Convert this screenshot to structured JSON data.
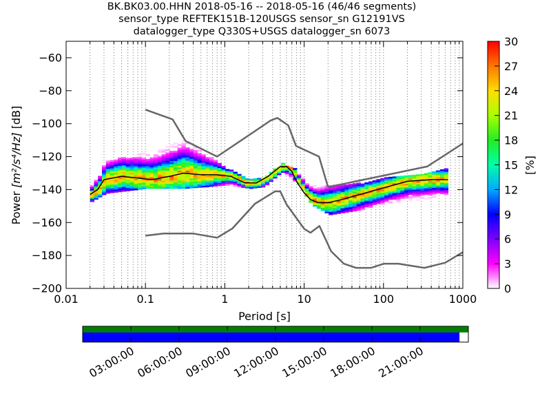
{
  "chart_data": {
    "type": "heatmap",
    "title": [
      "BK.BK03.00.HHN   2018-05-16 -- 2018-05-16  (46/46 segments)",
      "sensor_type REFTEK151B-120USGS sensor_sn G12191VS",
      "datalogger_type Q330S+USGS datalogger_sn 6073"
    ],
    "xlabel": "Period [s]",
    "ylabel_prefix": "Power ",
    "ylabel_unit": "[m²/s⁴/Hz]",
    "ylabel_suffix": " [dB]",
    "x_scale": "log",
    "xlim": [
      0.01,
      1000
    ],
    "ylim": [
      -200,
      -50
    ],
    "xticks": [
      0.01,
      0.1,
      1,
      10,
      100,
      1000
    ],
    "xtick_labels": [
      "0.01",
      "0.1",
      "1",
      "10",
      "100",
      "1000"
    ],
    "yticks": [
      -200,
      -180,
      -160,
      -140,
      -120,
      -100,
      -80,
      -60
    ],
    "ytick_labels": [
      "−200",
      "−180",
      "−160",
      "−140",
      "−120",
      "−100",
      "−80",
      "−60"
    ],
    "grid": "dotted vertical at log minor ticks",
    "colorbar": {
      "label": "[%]",
      "range": [
        0,
        30
      ],
      "ticks": [
        0,
        3,
        6,
        9,
        12,
        15,
        18,
        21,
        24,
        27,
        30
      ],
      "tick_labels": [
        "0",
        "3",
        "6",
        "9",
        "12",
        "15",
        "18",
        "21",
        "24",
        "27",
        "30"
      ],
      "colors": [
        "#ffffff",
        "#ff00ff",
        "#7f00ff",
        "#0000ff",
        "#00aaff",
        "#00ffaa",
        "#22ee22",
        "#aaff00",
        "#ffdd00",
        "#ff7700",
        "#ff0000"
      ]
    },
    "noise_model_high": {
      "period": [
        0.1,
        0.22,
        0.32,
        0.8,
        3.8,
        4.6,
        6.3,
        7.9,
        15.4,
        20,
        354.8,
        1000
      ],
      "power": [
        -91.5,
        -97.4,
        -110.5,
        -120,
        -98,
        -96.5,
        -101,
        -113.5,
        -120,
        -138.5,
        -126,
        -112
      ]
    },
    "noise_model_low": {
      "period": [
        0.1,
        0.17,
        0.4,
        0.8,
        1.24,
        2.4,
        4.3,
        5,
        6,
        10,
        12,
        15.6,
        21.9,
        31.6,
        45,
        70,
        101,
        154,
        328,
        600,
        1000
      ],
      "power": [
        -168,
        -166.7,
        -166.7,
        -169.2,
        -163.7,
        -148.6,
        -141.1,
        -141.1,
        -149,
        -163.8,
        -166.2,
        -162.1,
        -177.5,
        -185,
        -187.5,
        -187.5,
        -185,
        -185,
        -187.5,
        -184.4,
        -178
      ]
    },
    "mode_curve": {
      "period": [
        0.02,
        0.025,
        0.03,
        0.05,
        0.08,
        0.12,
        0.2,
        0.3,
        0.5,
        0.8,
        1.2,
        1.8,
        2.5,
        3.5,
        5,
        6,
        7,
        8,
        10,
        12,
        15,
        20,
        30,
        50,
        100,
        200,
        400,
        650
      ],
      "power": [
        -143,
        -140,
        -134,
        -132,
        -133,
        -134,
        -132,
        -130,
        -131,
        -131,
        -132,
        -136,
        -136,
        -132,
        -126,
        -126,
        -129,
        -135,
        -142,
        -146,
        -148,
        -148,
        -146,
        -143,
        -139,
        -135,
        -134,
        -134
      ]
    },
    "data_range_lower": {
      "period": [
        0.02,
        0.03,
        0.1,
        0.3,
        1,
        2,
        3,
        5,
        8,
        12,
        20,
        50,
        100,
        300,
        650
      ],
      "power": [
        -147,
        -142,
        -139,
        -139,
        -137,
        -139,
        -138,
        -129,
        -136,
        -149,
        -155,
        -152,
        -148,
        -146,
        -142
      ]
    },
    "data_range_upper": {
      "period": [
        0.02,
        0.03,
        0.1,
        0.3,
        1,
        2,
        3,
        5,
        8,
        12,
        20,
        50,
        100,
        300,
        650
      ],
      "power": [
        -138,
        -123,
        -117,
        -110,
        -127,
        -134,
        -133,
        -124,
        -128,
        -137,
        -137,
        -136,
        -133,
        -130,
        -127
      ]
    },
    "timeline": {
      "tick_labels": [
        "03:00:00",
        "06:00:00",
        "09:00:00",
        "12:00:00",
        "15:00:00",
        "18:00:00",
        "21:00:00"
      ],
      "tick_hours": [
        3,
        6,
        9,
        12,
        15,
        18,
        21
      ],
      "range_hours": [
        0,
        24
      ],
      "coverage_fraction": 0.977,
      "top_bar_color": "#008000",
      "bottom_bar_color": "#0000ff"
    }
  }
}
